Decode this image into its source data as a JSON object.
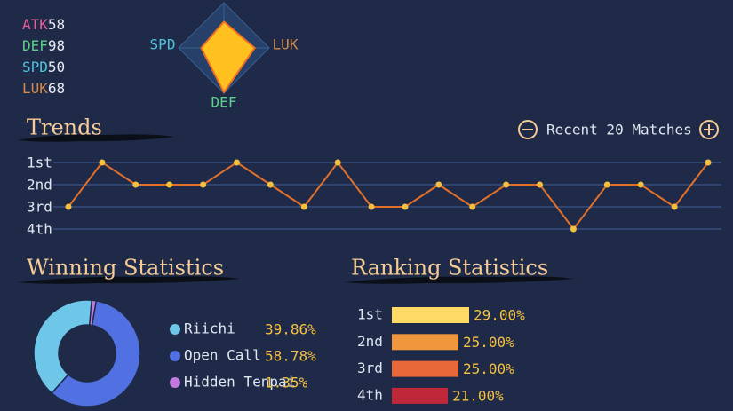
{
  "chart_data": [
    {
      "type": "radar",
      "categories": [
        "ATK",
        "DEF",
        "SPD",
        "LUK"
      ],
      "values": [
        58,
        98,
        50,
        68
      ],
      "rlim": [
        0,
        100
      ],
      "category_colors": [
        "#e8609a",
        "#5fd08a",
        "#4fc3dc",
        "#d48a4a"
      ],
      "fill": "#ffc020",
      "stroke": "#f07020"
    },
    {
      "type": "line",
      "title": "Trends",
      "control_label": "Recent 20 Matches",
      "values": [
        3,
        1,
        2,
        2,
        2,
        1,
        2,
        3,
        1,
        3,
        3,
        2,
        3,
        2,
        2,
        4,
        2,
        2,
        3,
        1
      ],
      "ylim": [
        1,
        4
      ],
      "yticks": [
        {
          "value": 1,
          "label": "1st"
        },
        {
          "value": 2,
          "label": "2nd"
        },
        {
          "value": 3,
          "label": "3rd"
        },
        {
          "value": 4,
          "label": "4th"
        }
      ],
      "grid": true,
      "color": "#e0702a",
      "marker_color": "#f5c040"
    },
    {
      "type": "pie",
      "title": "Winning Statistics",
      "categories": [
        "Riichi",
        "Open Call",
        "Hidden Tenpai"
      ],
      "values": [
        39.86,
        58.78,
        1.35
      ],
      "value_labels": [
        "39.86%",
        "58.78%",
        "1.35%"
      ],
      "colors": [
        "#6ec6e8",
        "#5170e2",
        "#c07ae0"
      ],
      "donut": true
    },
    {
      "type": "bar",
      "orientation": "horizontal",
      "title": "Ranking Statistics",
      "categories": [
        "1st",
        "2nd",
        "3rd",
        "4th"
      ],
      "values": [
        29,
        25,
        25,
        21
      ],
      "value_labels": [
        "29.00%",
        "25.00%",
        "25.00%",
        "21.00%"
      ],
      "colors": [
        "#ffd966",
        "#f0963c",
        "#e8683a",
        "#c0283a"
      ]
    }
  ]
}
